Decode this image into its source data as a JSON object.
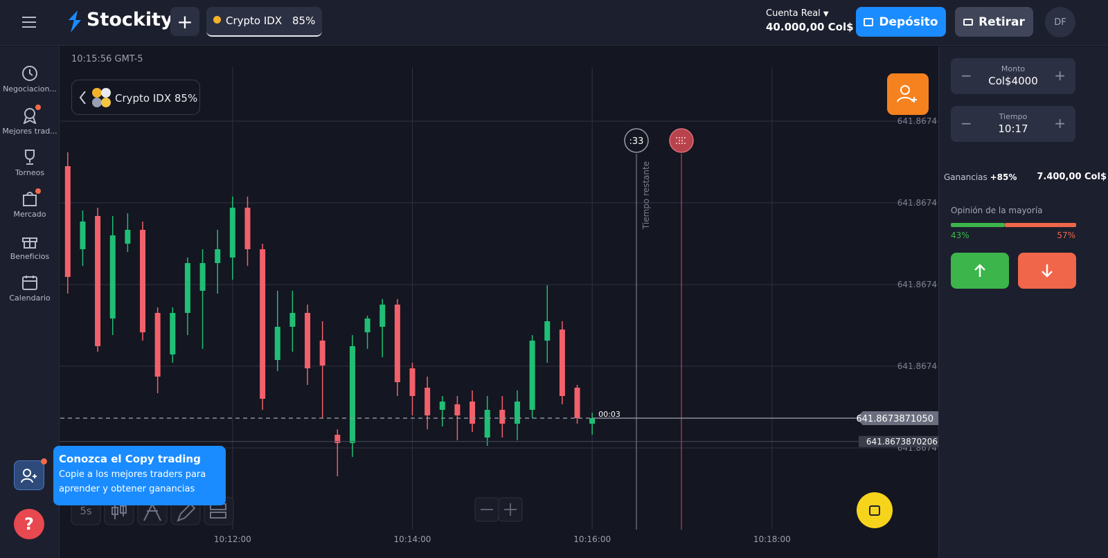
{
  "header": {
    "logo": "Stockity",
    "asset_tab": {
      "name": "Crypto IDX",
      "payout": "85%"
    },
    "account": {
      "type": "Cuenta Real",
      "balance": "40.000,00 Col$"
    },
    "deposit": "Depósito",
    "withdraw": "Retirar",
    "avatar": "DF"
  },
  "sidebar": {
    "items": [
      "Negociacion...",
      "Mejores trad...",
      "Torneos",
      "Mercado",
      "Beneficios",
      "Calendario"
    ]
  },
  "chart_data": {
    "type": "candlestick",
    "time_label": "10:15:56 GMT-5",
    "asset_label": "Crypto IDX 85%",
    "x": [
      "10:10:10",
      "10:10:20",
      "10:10:30",
      "10:10:40",
      "10:10:50",
      "10:11:00",
      "10:11:10",
      "10:11:20",
      "10:11:30",
      "10:11:40",
      "10:11:50",
      "10:12:00",
      "10:12:10",
      "10:12:20",
      "10:12:30",
      "10:12:40",
      "10:12:50",
      "10:13:00",
      "10:13:10",
      "10:13:20",
      "10:13:30",
      "10:13:40",
      "10:13:50",
      "10:14:00",
      "10:14:10",
      "10:14:20",
      "10:14:30",
      "10:14:40",
      "10:14:50",
      "10:15:00",
      "10:15:10",
      "10:15:20",
      "10:15:30",
      "10:15:40",
      "10:15:50",
      "10:16:00"
    ],
    "open": [
      641.867388015,
      641.867387715,
      641.867387835,
      641.867387465,
      641.867387735,
      641.867387785,
      641.867387485,
      641.867387335,
      641.867387485,
      641.867387565,
      641.867387665,
      641.867387685,
      641.867387865,
      641.867387715,
      641.867387315,
      641.867387435,
      641.867387485,
      641.867387385,
      641.867387045,
      641.867387015,
      641.867387415,
      641.867387435,
      641.867387515,
      641.867387285,
      641.867387215,
      641.867387135,
      641.867387155,
      641.867387165,
      641.867387035,
      641.867387135,
      641.867387085,
      641.867387135,
      641.867387385,
      641.867387425,
      641.867387215,
      641.867387085
    ],
    "close": [
      641.867387615,
      641.867387815,
      641.867387365,
      641.867387765,
      641.867387785,
      641.867387415,
      641.867387255,
      641.867387485,
      641.867387665,
      641.867387665,
      641.867387715,
      641.867387865,
      641.867387715,
      641.867387175,
      641.867387435,
      641.867387485,
      641.867387285,
      641.867387295,
      641.867387015,
      641.867387365,
      641.867387465,
      641.867387515,
      641.867387235,
      641.867387185,
      641.867387115,
      641.867387165,
      641.867387115,
      641.867387085,
      641.867387135,
      641.867387085,
      641.867387165,
      641.867387385,
      641.867387455,
      641.867387185,
      641.867387105,
      641.867387105
    ],
    "high": [
      641.867388065,
      641.867387855,
      641.867387865,
      641.867387835,
      641.867387845,
      641.867387815,
      641.867387505,
      641.867387505,
      641.867387685,
      641.867387715,
      641.867387785,
      641.867387905,
      641.867387905,
      641.867387735,
      641.867387565,
      641.867387565,
      641.867387515,
      641.867387455,
      641.867387065,
      641.867387405,
      641.867387475,
      641.867387535,
      641.867387535,
      641.867387305,
      641.867387255,
      641.867387185,
      641.867387185,
      641.867387205,
      641.867387185,
      641.867387185,
      641.867387205,
      641.867387405,
      641.867387585,
      641.867387455,
      641.867387225,
      641.867387125
    ],
    "low": [
      641.867387555,
      641.867387655,
      641.867387345,
      641.867387405,
      641.867387705,
      641.867387385,
      641.867387195,
      641.867387305,
      641.867387405,
      641.867387355,
      641.867387555,
      641.867387605,
      641.867387655,
      641.867387135,
      641.867387275,
      641.867387345,
      641.867387225,
      641.867387105,
      641.867386895,
      641.867386965,
      641.867387355,
      641.867387325,
      641.867387185,
      641.867387115,
      641.867387065,
      641.867387075,
      641.867387025,
      641.867387055,
      641.867387005,
      641.867387035,
      641.867387025,
      641.867387105,
      641.867387305,
      641.867387155,
      641.867387085,
      641.867387045
    ],
    "up_color": "#1fbf75",
    "down_color": "#f2616b",
    "xlim": [
      "10:10:05",
      "10:19:51"
    ],
    "xticks": [
      "10:12:00",
      "10:14:00",
      "10:16:00",
      "10:18:00"
    ],
    "ylim": [
      641.8673867025,
      641.8673883725
    ],
    "yticks": [
      {
        "value": 641.8673869975,
        "label": "641.8674"
      },
      {
        "value": 641.8673872925,
        "label": "641.8674"
      },
      {
        "value": 641.8673875875,
        "label": "641.8674"
      },
      {
        "value": 641.8673878825,
        "label": "641.8674"
      },
      {
        "value": 641.8673881775,
        "label": "641.8674"
      }
    ],
    "grid": true,
    "price_lines": [
      {
        "value": 641.867387105,
        "label": "641.8673871050"
      },
      {
        "value": 641.8673870206,
        "label": "641.8673870206"
      }
    ],
    "timer": "00:03",
    "countdown": ":33",
    "remaining_label": "Tiempo restante"
  },
  "toolbar": {
    "timeframe": "5s"
  },
  "copy_trading": {
    "title": "Conozca el Copy trading",
    "text": "Copie a los mejores traders para aprender y obtener ganancias"
  },
  "trade_panel": {
    "amount": {
      "label": "Monto",
      "value": "Col$4000"
    },
    "time": {
      "label": "Tiempo",
      "value": "10:17"
    },
    "profit": {
      "label": "Ganancias",
      "percent": "+85%",
      "value": "7.400,00 Col$"
    },
    "majority": {
      "label": "Opinión de la mayoría",
      "values": [
        43,
        57
      ],
      "value_labels": [
        "43%",
        "57%"
      ],
      "colors": [
        "#3cb54a",
        "#f0664a"
      ]
    }
  }
}
